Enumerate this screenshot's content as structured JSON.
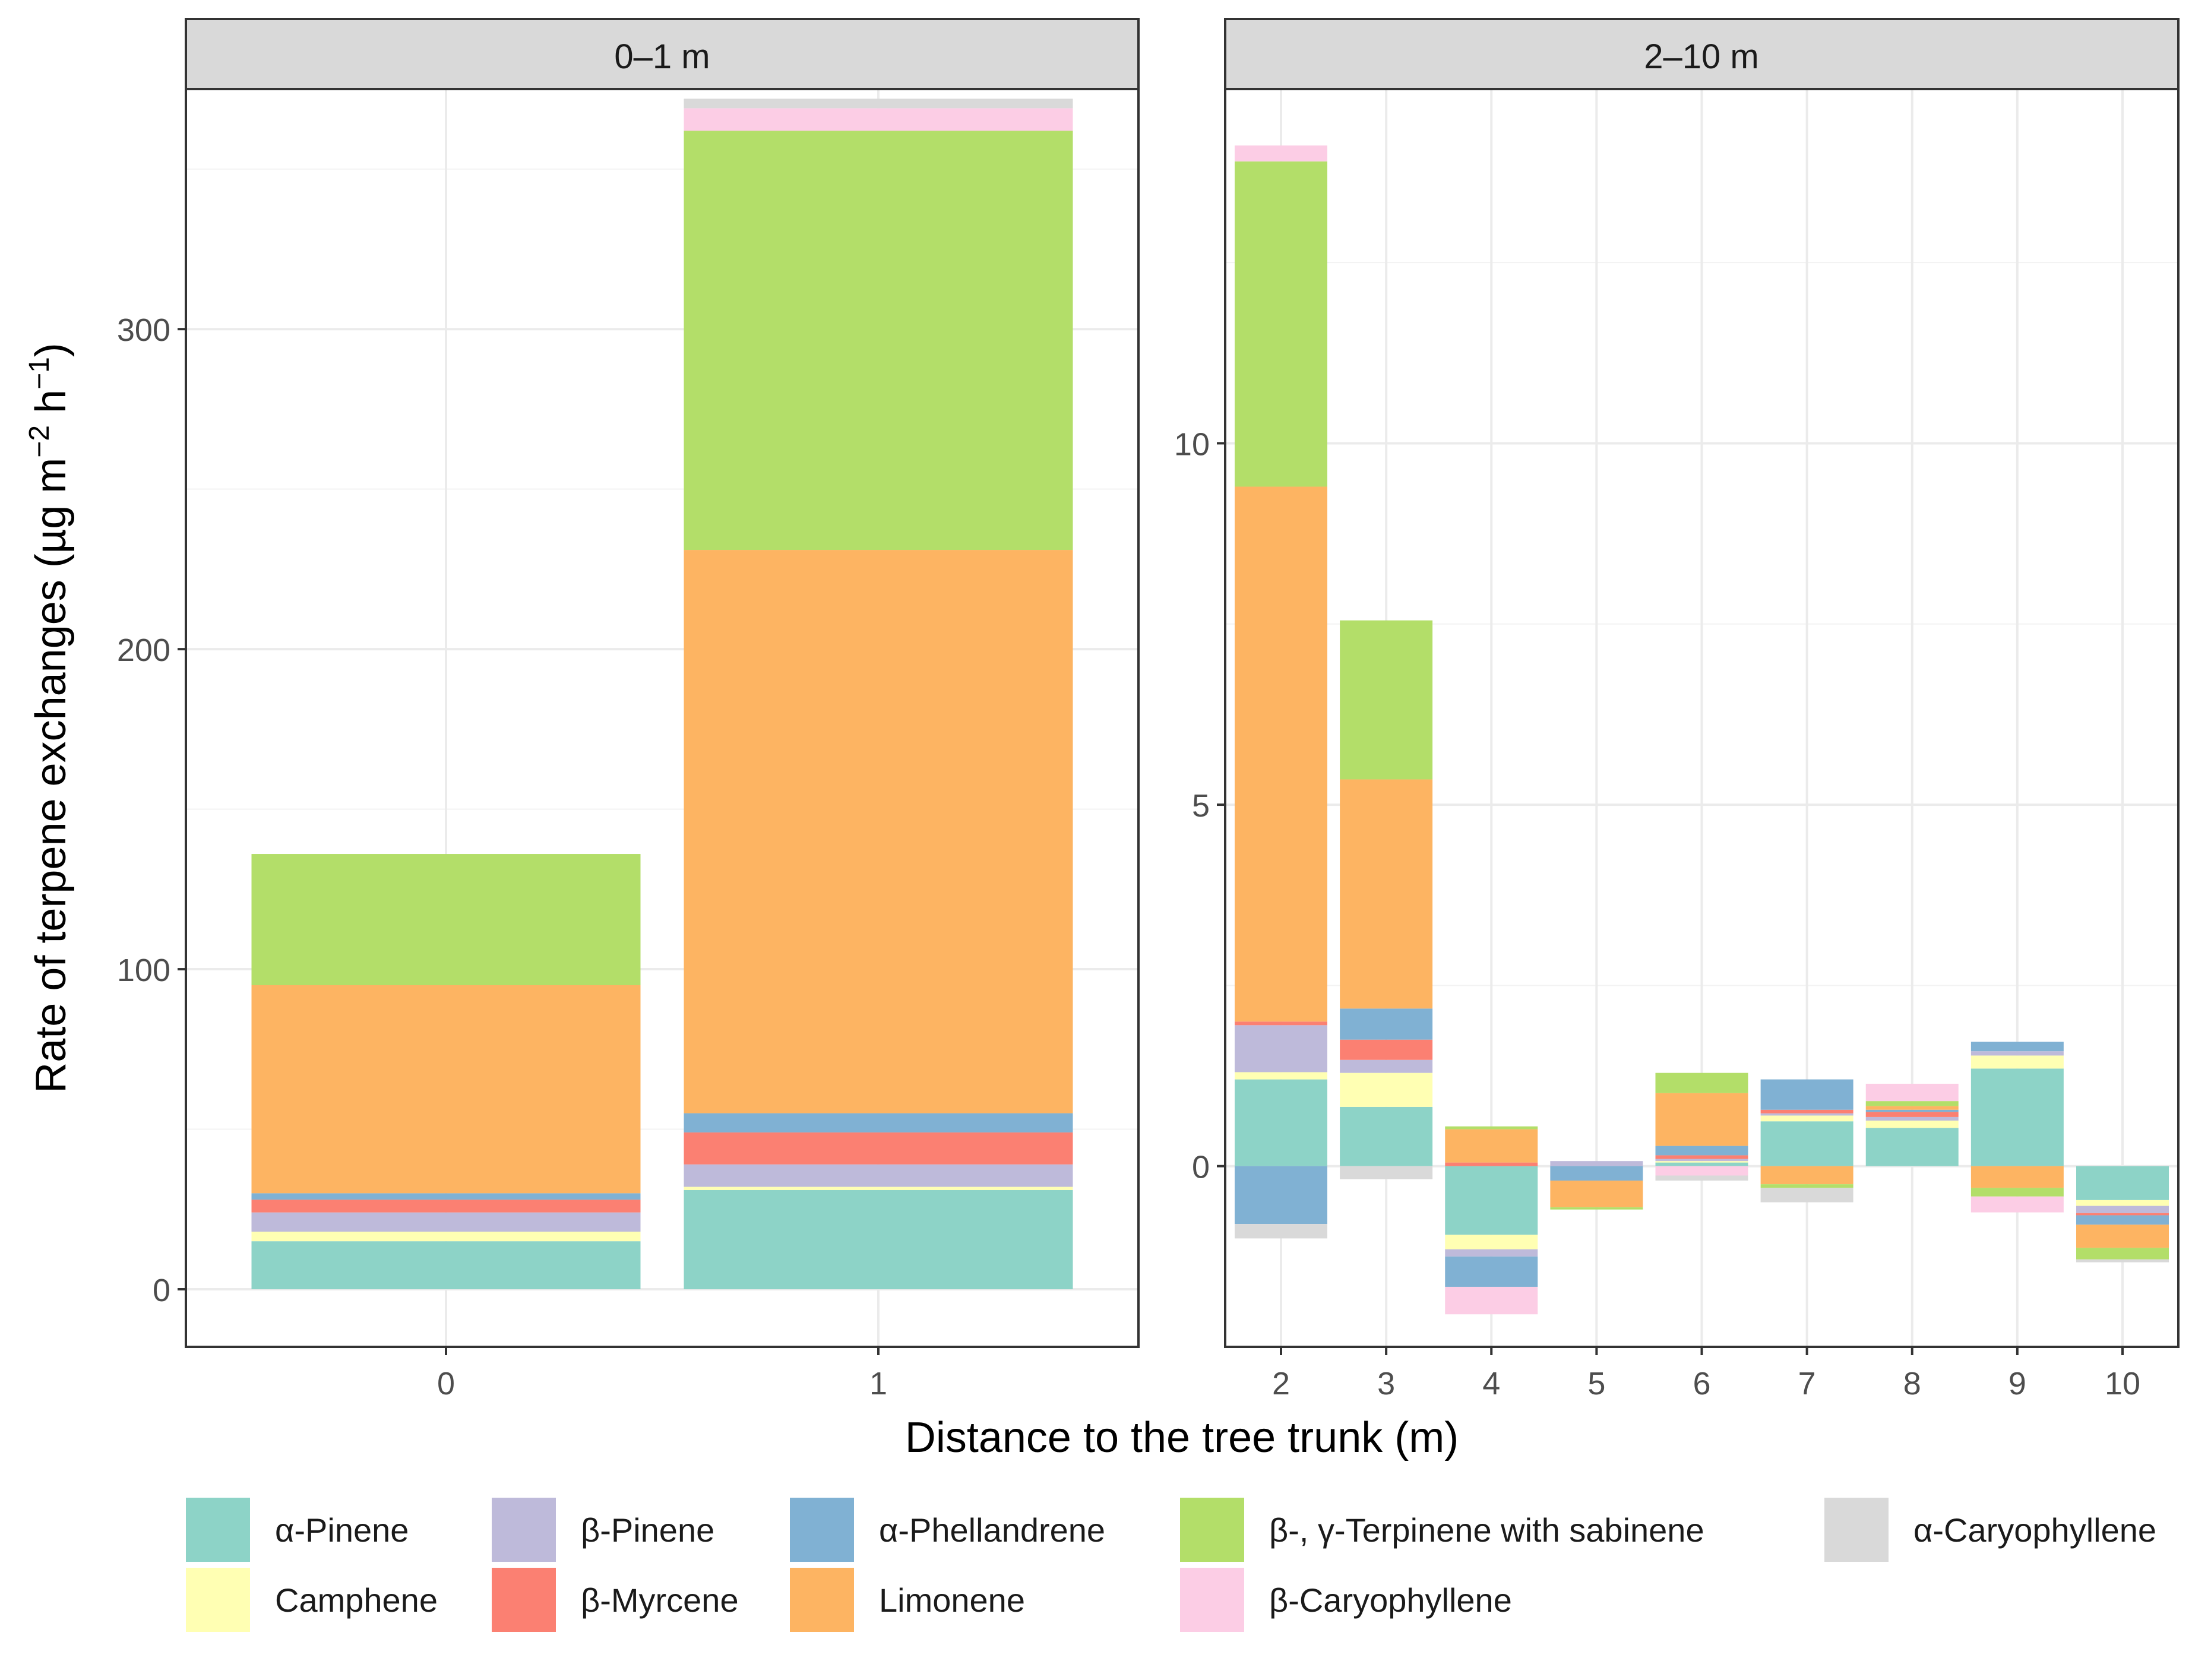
{
  "chart_data": {
    "type": "stacked-bar",
    "ylabel_main": "Rate of terpene exchanges (µg m",
    "ylabel_sup1": "−2",
    "ylabel_mid": " h",
    "ylabel_sup2": "−1",
    "ylabel_end": ")",
    "xlabel": "Distance to the tree trunk (m)",
    "series": [
      {
        "key": "a_pinene",
        "name": "α-Pinene",
        "color": "#8DD3C7"
      },
      {
        "key": "camphene",
        "name": "Camphene",
        "color": "#FFFFB3"
      },
      {
        "key": "b_pinene",
        "name": "β-Pinene",
        "color": "#BEBADA"
      },
      {
        "key": "b_myrcene",
        "name": "β-Myrcene",
        "color": "#FB8072"
      },
      {
        "key": "a_phell",
        "name": "α-Phellandrene",
        "color": "#80B1D3"
      },
      {
        "key": "limonene",
        "name": "Limonene",
        "color": "#FDB462"
      },
      {
        "key": "terpinene",
        "name": "β-, γ-Terpinene with sabinene",
        "color": "#B3DE69"
      },
      {
        "key": "b_caryo",
        "name": "β-Caryophyllene",
        "color": "#FCCDE5"
      },
      {
        "key": "a_caryo",
        "name": "α-Caryophyllene",
        "color": "#D9D9D9"
      }
    ],
    "legend_layout": [
      [
        "a_pinene",
        "b_pinene",
        "a_phell",
        "terpinene",
        "a_caryo"
      ],
      [
        "camphene",
        "b_myrcene",
        "limonene",
        "b_caryo"
      ]
    ],
    "panels": [
      {
        "title": "0–1 m",
        "ylim": [
          -18,
          375
        ],
        "yticks": [
          0,
          100,
          200,
          300
        ],
        "x": [
          0,
          1
        ],
        "bars": [
          {
            "x": 0,
            "values": {
              "a_pinene": 15,
              "camphene": 3,
              "b_pinene": 6,
              "b_myrcene": 4,
              "a_phell": 2,
              "limonene": 65,
              "terpinene": 41,
              "b_caryo": 0,
              "a_caryo": 0
            }
          },
          {
            "x": 1,
            "values": {
              "a_pinene": 31,
              "camphene": 1,
              "b_pinene": 7,
              "b_myrcene": 10,
              "a_phell": 6,
              "limonene": 176,
              "terpinene": 131,
              "b_caryo": 7,
              "a_caryo": 3
            }
          }
        ]
      },
      {
        "title": "2–10 m",
        "ylim": [
          -2.5,
          14.9
        ],
        "yticks": [
          0,
          5,
          10
        ],
        "x": [
          2,
          3,
          4,
          5,
          6,
          7,
          8,
          9,
          10
        ],
        "bars": [
          {
            "x": 2,
            "values": {
              "a_pinene": 1.2,
              "camphene": 0.1,
              "b_pinene": 0.65,
              "b_myrcene": 0.05,
              "a_phell": -0.8,
              "limonene": 7.4,
              "terpinene": 4.5,
              "b_caryo": 0.22,
              "a_caryo": -0.2
            }
          },
          {
            "x": 3,
            "values": {
              "a_pinene": 0.82,
              "camphene": 0.47,
              "b_pinene": 0.18,
              "b_myrcene": 0.28,
              "a_phell": 0.43,
              "limonene": 3.17,
              "terpinene": 2.2,
              "b_caryo": 0,
              "a_caryo": -0.18
            }
          },
          {
            "x": 4,
            "values": {
              "a_pinene": -0.95,
              "camphene": -0.2,
              "b_pinene": -0.1,
              "b_myrcene": 0.05,
              "a_phell": -0.42,
              "limonene": 0.46,
              "terpinene": 0.04,
              "b_caryo": -0.38,
              "a_caryo": 0
            }
          },
          {
            "x": 5,
            "values": {
              "a_pinene": 0,
              "camphene": 0,
              "b_pinene": 0.07,
              "b_myrcene": 0,
              "a_phell": -0.2,
              "limonene": -0.37,
              "terpinene": -0.03,
              "b_caryo": 0,
              "a_caryo": 0
            }
          },
          {
            "x": 6,
            "values": {
              "a_pinene": 0.05,
              "camphene": 0.02,
              "b_pinene": 0.03,
              "b_myrcene": 0.05,
              "a_phell": 0.13,
              "limonene": 0.73,
              "terpinene": 0.28,
              "b_caryo": -0.13,
              "a_caryo": -0.07
            }
          },
          {
            "x": 7,
            "values": {
              "a_pinene": 0.62,
              "camphene": 0.08,
              "b_pinene": 0.03,
              "b_myrcene": 0.05,
              "a_phell": 0.42,
              "limonene": -0.25,
              "terpinene": -0.05,
              "b_caryo": 0,
              "a_caryo": -0.2
            }
          },
          {
            "x": 8,
            "values": {
              "a_pinene": 0.53,
              "camphene": 0.1,
              "b_pinene": 0.05,
              "b_myrcene": 0.07,
              "a_phell": 0.03,
              "limonene": 0.05,
              "terpinene": 0.07,
              "b_caryo": 0.24,
              "a_caryo": 0
            }
          },
          {
            "x": 9,
            "values": {
              "a_pinene": 1.35,
              "camphene": 0.18,
              "b_pinene": 0.06,
              "b_myrcene": 0,
              "a_phell": 0.13,
              "limonene": -0.3,
              "terpinene": -0.12,
              "b_caryo": -0.22,
              "a_caryo": 0
            }
          },
          {
            "x": 10,
            "values": {
              "a_pinene": -0.47,
              "camphene": -0.08,
              "b_pinene": -0.1,
              "b_myrcene": -0.03,
              "a_phell": -0.13,
              "limonene": -0.32,
              "terpinene": -0.16,
              "b_caryo": 0,
              "a_caryo": -0.04
            }
          }
        ]
      }
    ]
  }
}
